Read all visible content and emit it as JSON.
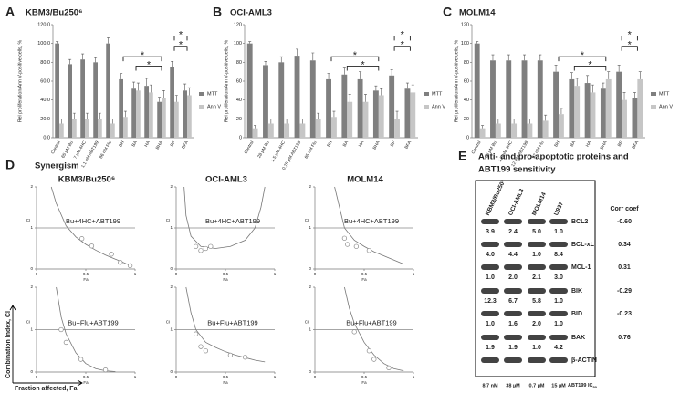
{
  "chart_data": [
    {
      "type": "bar",
      "panel": "A",
      "title": "KBM3/Bu250⁶",
      "ylabel": "Rel proliferation/Ann V-positive cells, %",
      "categories": [
        "Control",
        "65 µM Bu",
        "7 µM 4HC",
        "1.1 nM ABT199",
        "86 nM Flu",
        "BH",
        "BA",
        "HA",
        "BHA",
        "BF",
        "BFA"
      ],
      "series": [
        {
          "name": "MTT",
          "color": "#7f7f7f",
          "values": [
            100,
            78,
            83,
            80,
            100,
            62,
            52,
            55,
            38,
            75,
            50
          ],
          "errors": [
            2,
            5,
            6,
            5,
            6,
            6,
            7,
            8,
            5,
            6,
            7
          ]
        },
        {
          "name": "Ann V",
          "color": "#c6c6c6",
          "values": [
            15,
            20,
            20,
            20,
            15,
            22,
            50,
            48,
            42,
            38,
            45
          ],
          "errors": [
            5,
            6,
            6,
            6,
            5,
            6,
            8,
            8,
            8,
            7,
            8
          ]
        }
      ],
      "ylim": [
        0,
        120
      ],
      "yticks": [
        {
          "value": 0,
          "label": "0.0"
        },
        {
          "value": 20,
          "label": "20.0"
        },
        {
          "value": 40,
          "label": "40.0"
        },
        {
          "value": 60,
          "label": "60.0"
        },
        {
          "value": 80,
          "label": "80.0"
        },
        {
          "value": 100,
          "label": "100.0"
        },
        {
          "value": 120,
          "label": "120.0"
        }
      ],
      "annotations": [
        "*",
        "*",
        "*",
        "*"
      ]
    },
    {
      "type": "bar",
      "panel": "B",
      "title": "OCI-AML3",
      "ylabel": "Rel proliferation/Ann V-positive cells, %",
      "categories": [
        "Control",
        "28 µM Bu",
        "1.5 µM 4HC",
        "0.75 µM ABT199",
        "65 nM Flu",
        "BH",
        "BA",
        "HA",
        "BHA",
        "BF",
        "BFA"
      ],
      "series": [
        {
          "name": "MTT",
          "color": "#7f7f7f",
          "values": [
            100,
            77,
            80,
            87,
            82,
            62,
            67,
            62,
            50,
            66,
            52
          ],
          "errors": [
            2,
            4,
            6,
            7,
            8,
            6,
            7,
            8,
            5,
            6,
            6
          ]
        },
        {
          "name": "Ann V",
          "color": "#c6c6c6",
          "values": [
            10,
            15,
            15,
            15,
            20,
            22,
            38,
            38,
            45,
            20,
            48
          ],
          "errors": [
            3,
            5,
            5,
            5,
            6,
            6,
            8,
            8,
            7,
            8,
            8
          ]
        }
      ],
      "ylim": [
        0,
        120
      ],
      "yticks": [
        0,
        20,
        40,
        60,
        80,
        100,
        120
      ],
      "annotations": [
        "*",
        "*",
        "*",
        "*"
      ]
    },
    {
      "type": "bar",
      "panel": "C",
      "title": "MOLM14",
      "ylabel": "Rel proliferation/Ann V-positive cells, %",
      "categories": [
        "Control",
        "35 µM Bu",
        "1.7 µM 4HC",
        "12 nM ABT199",
        "92 nM Flu",
        "BH",
        "BA",
        "HA",
        "BHA",
        "BF",
        "BFA"
      ],
      "series": [
        {
          "name": "MTT",
          "color": "#7f7f7f",
          "values": [
            100,
            82,
            82,
            82,
            82,
            70,
            62,
            58,
            52,
            70,
            42
          ],
          "errors": [
            2,
            6,
            6,
            6,
            6,
            7,
            7,
            8,
            6,
            7,
            6
          ]
        },
        {
          "name": "Ann V",
          "color": "#c6c6c6",
          "values": [
            10,
            15,
            15,
            15,
            18,
            25,
            55,
            48,
            62,
            40,
            62
          ],
          "errors": [
            3,
            5,
            5,
            5,
            6,
            6,
            8,
            8,
            8,
            8,
            8
          ]
        }
      ],
      "ylim": [
        0,
        120
      ],
      "yticks": [
        0,
        20,
        40,
        60,
        80,
        100,
        120
      ],
      "annotations": [
        "*",
        "*",
        "*",
        "*"
      ]
    },
    {
      "type": "scatter",
      "annotation": "Bu+4HC+ABT199",
      "xlabel": "Fa",
      "ylabel": "CI",
      "xlim": [
        0,
        1
      ],
      "ylim": [
        0,
        2
      ],
      "xticks": [
        0,
        0.5,
        1
      ],
      "yticks": [
        0,
        1,
        2
      ],
      "reference": 1,
      "x": [
        0.46,
        0.56,
        0.76,
        0.85,
        0.95
      ],
      "values": [
        0.74,
        0.56,
        0.36,
        0.16,
        0.08
      ],
      "curve": {
        "x": [
          0.15,
          0.2,
          0.3,
          0.4,
          0.5,
          0.6,
          0.7,
          0.8,
          0.9,
          0.97
        ],
        "values": [
          2,
          1.6,
          1.05,
          0.78,
          0.6,
          0.46,
          0.34,
          0.24,
          0.14,
          0.06
        ]
      }
    },
    {
      "type": "scatter",
      "annotation": "Bu+4HC+ABT199",
      "xlabel": "Fa",
      "ylabel": "CI",
      "xlim": [
        0,
        1
      ],
      "ylim": [
        0,
        2
      ],
      "xticks": [
        0,
        0.5,
        1
      ],
      "yticks": [
        0,
        1,
        2
      ],
      "reference": 1,
      "x": [
        0.2,
        0.25,
        0.3,
        0.35
      ],
      "values": [
        0.55,
        0.45,
        0.5,
        0.55
      ],
      "curve": {
        "x": [
          0.08,
          0.1,
          0.15,
          0.25,
          0.4,
          0.55,
          0.7,
          0.8,
          0.86,
          0.9
        ],
        "values": [
          2,
          1.3,
          0.8,
          0.55,
          0.5,
          0.55,
          0.7,
          1.0,
          1.5,
          2
        ]
      }
    },
    {
      "type": "scatter",
      "annotation": "Bu+4HC+ABT199",
      "xlabel": "Fa",
      "ylabel": "CI",
      "xlim": [
        0,
        1
      ],
      "ylim": [
        0,
        2
      ],
      "xticks": [
        0,
        0.5,
        1
      ],
      "yticks": [
        0,
        1,
        2
      ],
      "reference": 1,
      "x": [
        0.3,
        0.33,
        0.42,
        0.55
      ],
      "values": [
        0.75,
        0.6,
        0.55,
        0.45
      ],
      "curve": {
        "x": [
          0.2,
          0.25,
          0.3,
          0.4,
          0.5,
          0.6,
          0.7,
          0.8,
          0.9
        ],
        "values": [
          2,
          1.5,
          1.0,
          0.7,
          0.55,
          0.42,
          0.32,
          0.22,
          0.12
        ]
      }
    },
    {
      "type": "scatter",
      "annotation": "Bu+Flu+ABT199",
      "xlabel": "Fa",
      "ylabel": "CI",
      "xlim": [
        0,
        1
      ],
      "ylim": [
        0,
        2
      ],
      "xticks": [
        0,
        0.5,
        1
      ],
      "yticks": [
        0,
        1,
        2
      ],
      "reference": 1,
      "x": [
        0.25,
        0.3,
        0.45,
        0.7
      ],
      "values": [
        1.0,
        0.7,
        0.3,
        0.05
      ],
      "curve": {
        "x": [
          0.2,
          0.25,
          0.3,
          0.4,
          0.5,
          0.6,
          0.7,
          0.8
        ],
        "values": [
          2,
          1.3,
          0.9,
          0.45,
          0.2,
          0.08,
          0.03,
          0.01
        ]
      }
    },
    {
      "type": "scatter",
      "annotation": "Bu+Flu+ABT199",
      "xlabel": "Fa",
      "ylabel": "CI",
      "xlim": [
        0,
        1
      ],
      "ylim": [
        0,
        2
      ],
      "xticks": [
        0,
        0.5,
        1
      ],
      "yticks": [
        0,
        1,
        2
      ],
      "reference": 1,
      "x": [
        0.2,
        0.25,
        0.3,
        0.55,
        0.7
      ],
      "values": [
        0.9,
        0.6,
        0.5,
        0.4,
        0.35
      ],
      "curve": {
        "x": [
          0.1,
          0.15,
          0.2,
          0.3,
          0.4,
          0.5,
          0.6,
          0.7,
          0.8,
          0.9
        ],
        "values": [
          2,
          1.4,
          1.0,
          0.7,
          0.58,
          0.48,
          0.4,
          0.34,
          0.28,
          0.24
        ]
      }
    },
    {
      "type": "scatter",
      "annotation": "Bu+Flu+ABT199",
      "xlabel": "Fa",
      "ylabel": "CI",
      "xlim": [
        0,
        1
      ],
      "ylim": [
        0,
        2
      ],
      "xticks": [
        0,
        0.5,
        1
      ],
      "yticks": [
        0,
        1,
        2
      ],
      "reference": 1,
      "x": [
        0.4,
        0.55,
        0.6,
        0.75
      ],
      "values": [
        0.95,
        0.5,
        0.3,
        0.1
      ],
      "curve": {
        "x": [
          0.3,
          0.35,
          0.4,
          0.5,
          0.6,
          0.7,
          0.8,
          0.9
        ],
        "values": [
          2,
          1.5,
          1.15,
          0.7,
          0.4,
          0.2,
          0.08,
          0.03
        ]
      }
    }
  ],
  "panel_d": {
    "label": "D",
    "title": "Synergism",
    "columns": [
      "KBM3/Bu250⁶",
      "OCI-AML3",
      "MOLM14"
    ],
    "y_label": "Combination Index, CI",
    "x_label": "Fraction affected, Fa"
  },
  "panel_e": {
    "label": "E",
    "title": [
      "Anti- and pro-apoptotic proteins and",
      "ABT199 sensitivity"
    ],
    "lanes": [
      "KBM3/Bu250⁶",
      "OCI-AML3",
      "MOLM14",
      "U937"
    ],
    "corr_header": "Corr coef",
    "rows": [
      {
        "protein": "BCL2",
        "levels": [
          "3.9",
          "2.4",
          "5.0",
          "1.0"
        ],
        "corr": "-0.60"
      },
      {
        "protein": "BCL-xL",
        "levels": [
          "4.0",
          "4.4",
          "1.0",
          "8.4"
        ],
        "corr": "0.34"
      },
      {
        "protein": "MCL-1",
        "levels": [
          "1.0",
          "2.0",
          "2.1",
          "3.0"
        ],
        "corr": "0.31"
      },
      {
        "protein": "BIK",
        "levels": [
          "12.3",
          "6.7",
          "5.8",
          "1.0"
        ],
        "corr": "-0.29"
      },
      {
        "protein": "BID",
        "levels": [
          "1.0",
          "1.6",
          "2.0",
          "1.0"
        ],
        "corr": "-0.23"
      },
      {
        "protein": "BAK",
        "levels": [
          "1.9",
          "1.9",
          "1.0",
          "4.2"
        ],
        "corr": "0.76"
      },
      {
        "protein": "β-ACTIN"
      }
    ],
    "ic50": [
      "8.7 nM",
      "38 µM",
      "0.7 µM",
      "15 µM"
    ],
    "ic50_label": "ABT199 IC",
    "ic50_subscript": "50"
  }
}
